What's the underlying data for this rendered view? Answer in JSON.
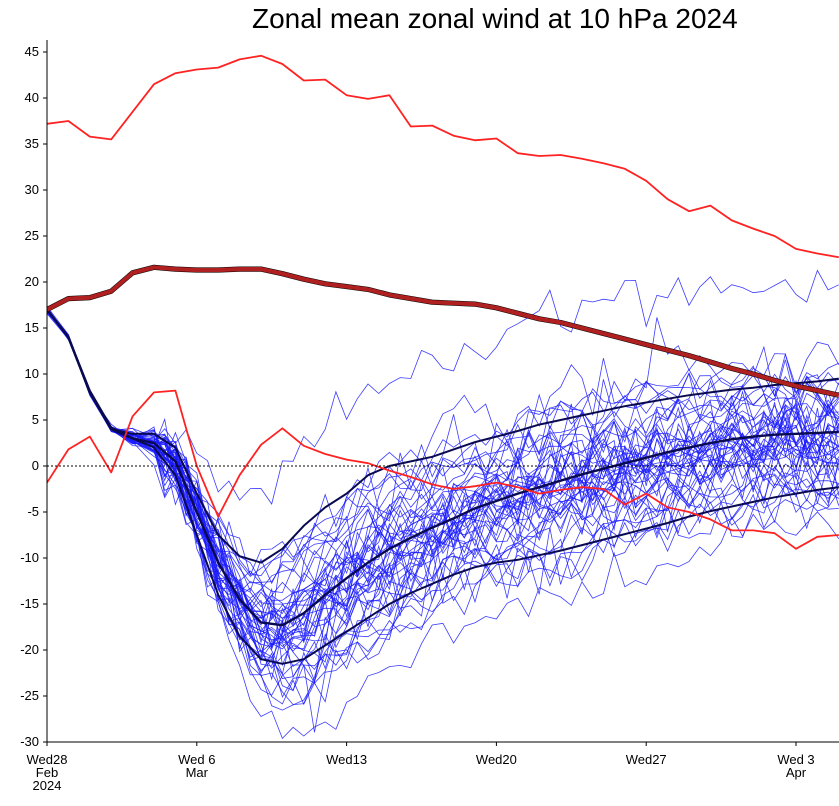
{
  "chart_data": {
    "type": "line",
    "title": "Zonal mean zonal wind at 10 hPa 2024",
    "xlabel": "",
    "ylabel": "",
    "x_ticks": [
      {
        "day": 0,
        "lines": [
          "Wed28",
          "Feb",
          "2024"
        ]
      },
      {
        "day": 7,
        "lines": [
          "Wed 6",
          "Mar"
        ]
      },
      {
        "day": 14,
        "lines": [
          "Wed13"
        ]
      },
      {
        "day": 21,
        "lines": [
          "Wed20"
        ]
      },
      {
        "day": 28,
        "lines": [
          "Wed27"
        ]
      },
      {
        "day": 35,
        "lines": [
          "Wed 3",
          "Apr"
        ]
      }
    ],
    "y_ticks": [
      45,
      40,
      35,
      30,
      25,
      20,
      15,
      10,
      5,
      0,
      -5,
      -10,
      -15,
      -20,
      -25,
      -30
    ],
    "ylim": [
      -30,
      46
    ],
    "xlim": [
      0,
      37
    ],
    "zero_line": true,
    "ensemble": {
      "color": "#1a1aff",
      "members": 50,
      "seed": 7,
      "start_day": 0,
      "start_value": 17
    },
    "series": [
      {
        "role": "max",
        "color": "#ff2222",
        "x": [
          0,
          1,
          2,
          3,
          4,
          5,
          6,
          7,
          8,
          9,
          10,
          11,
          12,
          13,
          14,
          15,
          16,
          17,
          18,
          19,
          20,
          21,
          22,
          23,
          24,
          25,
          26,
          27,
          28,
          29,
          30,
          31,
          32,
          33,
          34,
          35,
          36,
          37
        ],
        "values": [
          37.2,
          37.5,
          35.8,
          35.5,
          38.5,
          41.5,
          42.7,
          43.1,
          43.3,
          44.2,
          44.6,
          43.7,
          41.9,
          42.0,
          40.3,
          39.9,
          40.3,
          36.9,
          37.0,
          35.9,
          35.4,
          35.6,
          34.0,
          33.7,
          33.8,
          33.4,
          32.9,
          32.3,
          31.0,
          29.0,
          27.7,
          28.3,
          26.7,
          25.8,
          25.0,
          23.6,
          23.1,
          22.7
        ]
      },
      {
        "role": "mean-climatology",
        "color": "#b02020",
        "x": [
          0,
          1,
          2,
          3,
          4,
          5,
          6,
          7,
          8,
          9,
          10,
          11,
          12,
          13,
          14,
          15,
          16,
          17,
          18,
          19,
          20,
          21,
          22,
          23,
          24,
          25,
          26,
          27,
          28,
          29,
          30,
          31,
          32,
          33,
          34,
          35,
          36,
          37
        ],
        "values": [
          17.0,
          18.2,
          18.3,
          19.0,
          21.0,
          21.6,
          21.4,
          21.3,
          21.3,
          21.4,
          21.4,
          20.9,
          20.3,
          19.8,
          19.5,
          19.2,
          18.6,
          18.2,
          17.8,
          17.7,
          17.6,
          17.2,
          16.6,
          16.0,
          15.6,
          15.0,
          14.4,
          13.8,
          13.2,
          12.6,
          12.0,
          11.3,
          10.6,
          10.0,
          9.3,
          8.7,
          8.2,
          7.7
        ]
      },
      {
        "role": "min",
        "color": "#ff2222",
        "x": [
          0,
          1,
          2,
          3,
          4,
          5,
          6,
          7,
          8,
          9,
          10,
          11,
          12,
          13,
          14,
          15,
          16,
          17,
          18,
          19,
          20,
          21,
          22,
          23,
          24,
          25,
          26,
          27,
          28,
          29,
          30,
          31,
          32,
          33,
          34,
          35,
          36,
          37
        ],
        "values": [
          -1.8,
          1.8,
          3.2,
          -0.7,
          5.4,
          8.0,
          8.2,
          0.0,
          -5.5,
          -1.0,
          2.3,
          4.1,
          2.2,
          1.3,
          0.7,
          0.3,
          -0.5,
          -1.2,
          -2.0,
          -2.5,
          -2.2,
          -1.8,
          -2.3,
          -3.0,
          -2.6,
          -2.3,
          -2.5,
          -4.2,
          -3.0,
          -4.5,
          -5.0,
          -5.8,
          -7.0,
          -7.0,
          -7.3,
          -9.0,
          -7.7,
          -7.5
        ]
      },
      {
        "role": "ensemble-mean",
        "color": "#0a0a50",
        "x": [
          0,
          1,
          2,
          3,
          4,
          5,
          6,
          7,
          8,
          9,
          10,
          11,
          12,
          13,
          14,
          15,
          16,
          17,
          18,
          19,
          20,
          21,
          22,
          23,
          24,
          25,
          26,
          27,
          28,
          29,
          30,
          31,
          32,
          33,
          34,
          35,
          36,
          37
        ],
        "values": [
          17.0,
          14.0,
          8.0,
          4.0,
          3.0,
          2.5,
          0.5,
          -5.0,
          -10.5,
          -14.5,
          -17.0,
          -17.3,
          -16.0,
          -14.0,
          -12.2,
          -10.5,
          -9.0,
          -7.8,
          -6.7,
          -5.7,
          -4.6,
          -3.8,
          -3.0,
          -2.3,
          -1.6,
          -0.9,
          -0.3,
          0.3,
          0.9,
          1.5,
          2.0,
          2.5,
          2.9,
          3.2,
          3.4,
          3.5,
          3.6,
          3.7
        ]
      },
      {
        "role": "ensemble-low",
        "color": "#0a0a50",
        "x": [
          0,
          1,
          2,
          3,
          4,
          5,
          6,
          7,
          8,
          9,
          10,
          11,
          12,
          13,
          14,
          15,
          16,
          17,
          18,
          19,
          20,
          21,
          22,
          23,
          24,
          25,
          26,
          27,
          28,
          29,
          30,
          31,
          32,
          33,
          34,
          35,
          36,
          37
        ],
        "values": [
          17.0,
          14.0,
          8.2,
          4.2,
          3.0,
          2.0,
          -1.0,
          -7.5,
          -14.0,
          -18.5,
          -21.0,
          -21.5,
          -21.0,
          -19.5,
          -18.0,
          -16.5,
          -15.0,
          -13.8,
          -12.8,
          -11.8,
          -11.0,
          -10.5,
          -10.2,
          -9.7,
          -9.2,
          -8.6,
          -8.0,
          -7.4,
          -6.8,
          -6.2,
          -5.5,
          -4.9,
          -4.4,
          -3.9,
          -3.4,
          -3.0,
          -2.6,
          -2.3
        ]
      },
      {
        "role": "ensemble-high",
        "color": "#0a0a50",
        "x": [
          0,
          1,
          2,
          3,
          4,
          5,
          6,
          7,
          8,
          9,
          10,
          11,
          12,
          13,
          14,
          15,
          16,
          17,
          18,
          19,
          20,
          21,
          22,
          23,
          24,
          25,
          26,
          27,
          28,
          29,
          30,
          31,
          32,
          33,
          34,
          35,
          36,
          37
        ],
        "values": [
          17.0,
          14.0,
          8.0,
          4.0,
          3.5,
          3.5,
          2.0,
          -3.0,
          -7.5,
          -9.8,
          -10.5,
          -9.0,
          -6.5,
          -4.5,
          -3.0,
          -1.0,
          0.0,
          0.5,
          1.0,
          1.8,
          2.6,
          3.2,
          3.8,
          4.5,
          5.0,
          5.5,
          6.0,
          6.5,
          6.9,
          7.3,
          7.7,
          8.0,
          8.3,
          8.5,
          8.8,
          9.0,
          9.2,
          9.5
        ]
      }
    ]
  }
}
